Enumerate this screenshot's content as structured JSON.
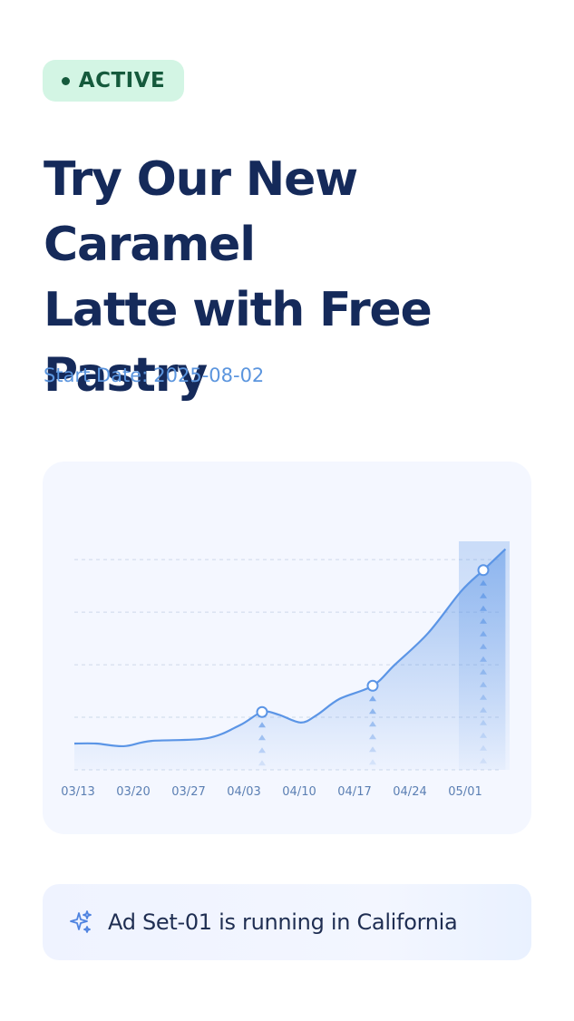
{
  "badge": {
    "label": "ACTIVE",
    "colors": {
      "bg": "#d3f5e4",
      "text": "#155a3c"
    }
  },
  "campaign": {
    "title_lines": [
      "Try Our New Caramel",
      "Latte with Free",
      "Pastry"
    ],
    "start_date_label": "Start Date:",
    "start_date_value": "2025-08-02"
  },
  "chart_data": {
    "type": "area",
    "x": [
      "03/13",
      "03/20",
      "03/27",
      "04/03",
      "04/10",
      "04/17",
      "04/24",
      "05/01"
    ],
    "tick_labels": [
      "03/13",
      "03/20",
      "03/27",
      "04/03",
      "04/10",
      "04/17",
      "04/24",
      "05/01"
    ],
    "series": [
      {
        "points": [
          [
            0,
            10
          ],
          [
            0.5,
            9
          ],
          [
            1,
            11
          ],
          [
            2,
            12
          ],
          [
            2.6,
            17
          ],
          [
            3,
            22
          ],
          [
            3.3,
            21
          ],
          [
            3.7,
            18
          ],
          [
            4,
            21
          ],
          [
            4.4,
            27
          ],
          [
            5,
            32
          ],
          [
            5.4,
            40
          ],
          [
            6,
            52
          ],
          [
            6.6,
            68
          ],
          [
            7,
            76
          ],
          [
            7.4,
            84
          ]
        ],
        "markers": [
          [
            3,
            22
          ],
          [
            5,
            32
          ],
          [
            7,
            76
          ]
        ]
      }
    ],
    "highlight_x": 7,
    "ylim": [
      0,
      88
    ],
    "grid": "horizontal-dashed",
    "accent_color": "#5b95e6"
  },
  "status": {
    "icon": "sparkles-icon",
    "text": "Ad Set-01 is running in California"
  }
}
